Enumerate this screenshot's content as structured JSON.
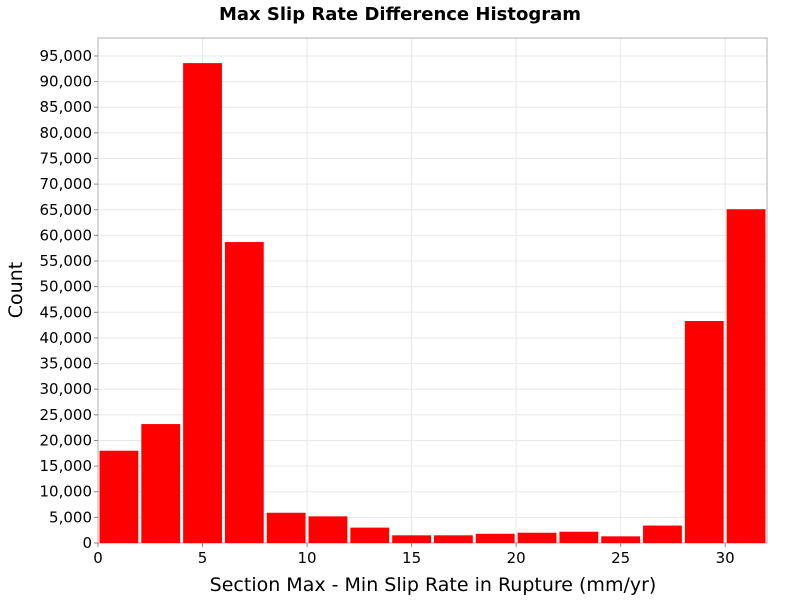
{
  "chart_data": {
    "type": "bar",
    "title": "Max Slip Rate Difference Histogram",
    "xlabel": "Section Max - Min Slip Rate in Rupture (mm/yr)",
    "ylabel": "Count",
    "bin_width": 2,
    "bins": [
      {
        "x": 1,
        "value": 18000
      },
      {
        "x": 3,
        "value": 23200
      },
      {
        "x": 5,
        "value": 93600
      },
      {
        "x": 7,
        "value": 58700
      },
      {
        "x": 9,
        "value": 5900
      },
      {
        "x": 11,
        "value": 5200
      },
      {
        "x": 13,
        "value": 3000
      },
      {
        "x": 15,
        "value": 1500
      },
      {
        "x": 17,
        "value": 1500
      },
      {
        "x": 19,
        "value": 1800
      },
      {
        "x": 21,
        "value": 2000
      },
      {
        "x": 23,
        "value": 2200
      },
      {
        "x": 25,
        "value": 1300
      },
      {
        "x": 27,
        "value": 3400
      },
      {
        "x": 29,
        "value": 43300
      },
      {
        "x": 31,
        "value": 65100
      }
    ],
    "xlim": [
      0,
      32
    ],
    "ylim": [
      0,
      98500
    ],
    "x_ticks": [
      {
        "value": 0,
        "label": "0"
      },
      {
        "value": 5,
        "label": "5"
      },
      {
        "value": 10,
        "label": "10"
      },
      {
        "value": 15,
        "label": "15"
      },
      {
        "value": 20,
        "label": "20"
      },
      {
        "value": 25,
        "label": "25"
      },
      {
        "value": 30,
        "label": "30"
      }
    ],
    "y_ticks": [
      {
        "value": 0,
        "label": "0"
      },
      {
        "value": 5000,
        "label": "5,000"
      },
      {
        "value": 10000,
        "label": "10,000"
      },
      {
        "value": 15000,
        "label": "15,000"
      },
      {
        "value": 20000,
        "label": "20,000"
      },
      {
        "value": 25000,
        "label": "25,000"
      },
      {
        "value": 30000,
        "label": "30,000"
      },
      {
        "value": 35000,
        "label": "35,000"
      },
      {
        "value": 40000,
        "label": "40,000"
      },
      {
        "value": 45000,
        "label": "45,000"
      },
      {
        "value": 50000,
        "label": "50,000"
      },
      {
        "value": 55000,
        "label": "55,000"
      },
      {
        "value": 60000,
        "label": "60,000"
      },
      {
        "value": 65000,
        "label": "65,000"
      },
      {
        "value": 70000,
        "label": "70,000"
      },
      {
        "value": 75000,
        "label": "75,000"
      },
      {
        "value": 80000,
        "label": "80,000"
      },
      {
        "value": 85000,
        "label": "85,000"
      },
      {
        "value": 90000,
        "label": "90,000"
      },
      {
        "value": 95000,
        "label": "95,000"
      }
    ],
    "grid": true,
    "legend": "none",
    "bar_color": "#ff0000",
    "grid_color": "#e8e8e8",
    "plot_border_color": "#b0b0b0"
  }
}
